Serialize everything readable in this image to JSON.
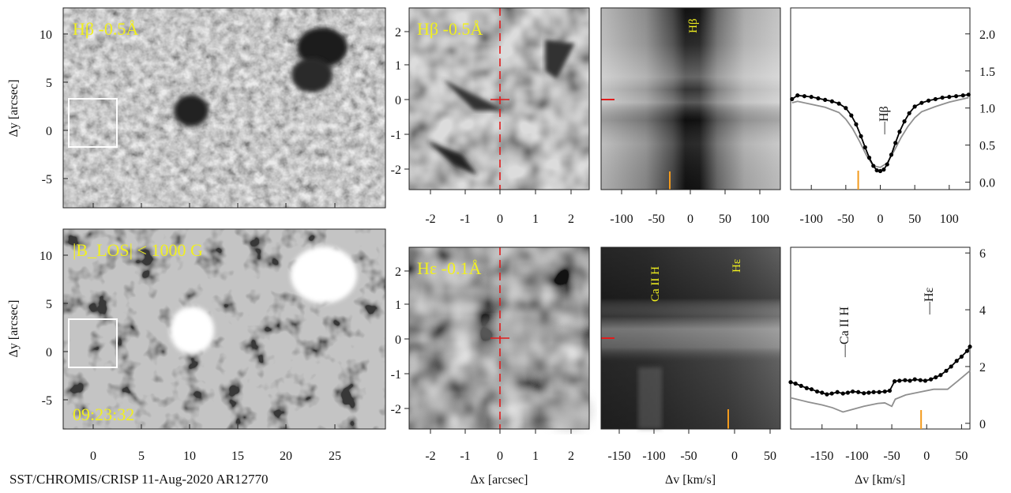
{
  "figure": {
    "credit": "SST/CHROMIS/CRISP 11-Aug-2020 AR12770",
    "colors": {
      "label_yellow": "#f1f01e",
      "cross_red": "#e21b1b",
      "marker_orange": "#f39a1c",
      "profile_black": "#000000",
      "profile_gray": "#8f8f8f"
    }
  },
  "panels": {
    "ctx_top": {
      "label": "Hβ -0.5Å",
      "ylabel": "Δy [arcsec]",
      "yticks": [
        "10",
        "5",
        "0",
        "-5"
      ]
    },
    "ctx_bottom": {
      "label": "|B_LOS| < 1000 G",
      "timestamp": "09:23:32",
      "ylabel": "Δy [arcsec]",
      "yticks": [
        "10",
        "5",
        "0",
        "-5"
      ],
      "xticks": [
        "0",
        "5",
        "10",
        "15",
        "20",
        "25"
      ]
    },
    "zoom_top": {
      "label": "Hβ -0.5Å",
      "yticks": [
        "2",
        "1",
        "0",
        "-1",
        "-2"
      ],
      "xticks": [
        "-2",
        "-1",
        "0",
        "1",
        "2"
      ]
    },
    "zoom_bottom": {
      "label": "Hε -0.1Å",
      "yticks": [
        "2",
        "1",
        "0",
        "-1",
        "-2"
      ],
      "xticks": [
        "-2",
        "-1",
        "0",
        "1",
        "2"
      ],
      "xlabel": "Δx [arcsec]"
    },
    "spec_top": {
      "line_label": "Hβ",
      "xticks": [
        "-100",
        "-50",
        "0",
        "50",
        "100"
      ]
    },
    "spec_bottom": {
      "line_labels": [
        "Ca II H",
        "Hε"
      ],
      "xticks": [
        "-150",
        "-100",
        "-50",
        "0",
        "50"
      ],
      "xlabel": "Δv [km/s]"
    },
    "prof_top": {
      "line_label": "Hβ",
      "yticks": [
        "2.0",
        "1.5",
        "1.0",
        "0.5",
        "0.0"
      ],
      "xticks": [
        "-100",
        "-50",
        "0",
        "50",
        "100"
      ]
    },
    "prof_bottom": {
      "line_labels": [
        "Ca II H",
        "Hε"
      ],
      "yticks": [
        "6",
        "4",
        "2",
        "0"
      ],
      "xticks": [
        "-150",
        "-100",
        "-50",
        "0",
        "50"
      ],
      "xlabel": "Δv [km/s]"
    }
  },
  "chart_data": [
    {
      "type": "line",
      "title": "",
      "xlabel": "",
      "ylabel": "",
      "xlim": [
        -130,
        130
      ],
      "ylim": [
        -0.1,
        2.35
      ],
      "marker_x": -32,
      "annotation": "Hβ",
      "series": [
        {
          "x": [
            -128,
            -120,
            -110,
            -100,
            -90,
            -80,
            -70,
            -60,
            -50,
            -42,
            -35,
            -28,
            -22,
            -16,
            -10,
            -5,
            0,
            5,
            10,
            16,
            22,
            28,
            35,
            42,
            50,
            60,
            70,
            80,
            90,
            100,
            110,
            120,
            128
          ],
          "y": [
            1.12,
            1.17,
            1.16,
            1.15,
            1.13,
            1.11,
            1.09,
            1.06,
            1.0,
            0.9,
            0.78,
            0.62,
            0.47,
            0.33,
            0.22,
            0.16,
            0.15,
            0.17,
            0.24,
            0.37,
            0.53,
            0.68,
            0.82,
            0.93,
            1.02,
            1.07,
            1.1,
            1.12,
            1.14,
            1.15,
            1.16,
            1.17,
            1.18
          ]
        },
        {
          "x": [
            -128,
            -120,
            -100,
            -80,
            -60,
            -50,
            -40,
            -30,
            -20,
            -10,
            0,
            10,
            20,
            30,
            40,
            50,
            60,
            80,
            100,
            128
          ],
          "y": [
            1.07,
            1.09,
            1.05,
            1.01,
            0.94,
            0.85,
            0.72,
            0.55,
            0.36,
            0.22,
            0.2,
            0.26,
            0.42,
            0.6,
            0.75,
            0.87,
            0.95,
            1.02,
            1.08,
            1.14
          ]
        }
      ]
    },
    {
      "type": "line",
      "title": "",
      "xlabel": "Δv [km/s]",
      "ylabel": "",
      "xlim": [
        -195,
        62
      ],
      "ylim": [
        -0.2,
        6.2
      ],
      "marker_x": -8,
      "annotations": [
        "Ca II H",
        "Hε"
      ],
      "series": [
        {
          "x": [
            -195,
            -188,
            -180,
            -172,
            -165,
            -157,
            -150,
            -143,
            -136,
            -128,
            -120,
            -113,
            -106,
            -98,
            -90,
            -83,
            -76,
            -68,
            -60,
            -53,
            -46,
            -39,
            -31,
            -24,
            -17,
            -9,
            -2,
            6,
            13,
            20,
            28,
            35,
            43,
            50,
            58,
            62
          ],
          "y": [
            1.45,
            1.4,
            1.32,
            1.24,
            1.2,
            1.12,
            1.08,
            1.02,
            1.05,
            1.1,
            1.05,
            1.08,
            1.12,
            1.1,
            1.06,
            1.08,
            1.1,
            1.1,
            1.12,
            1.15,
            1.48,
            1.5,
            1.52,
            1.5,
            1.55,
            1.52,
            1.5,
            1.55,
            1.62,
            1.7,
            1.85,
            2.0,
            2.2,
            2.35,
            2.55,
            2.7
          ]
        },
        {
          "x": [
            -195,
            -170,
            -150,
            -135,
            -120,
            -105,
            -90,
            -70,
            -60,
            -50,
            -45,
            -30,
            -10,
            10,
            30,
            45,
            62
          ],
          "y": [
            0.9,
            0.75,
            0.65,
            0.55,
            0.4,
            0.5,
            0.6,
            0.7,
            0.72,
            0.6,
            0.85,
            1.0,
            1.1,
            1.2,
            1.2,
            1.5,
            1.85
          ]
        }
      ]
    }
  ]
}
